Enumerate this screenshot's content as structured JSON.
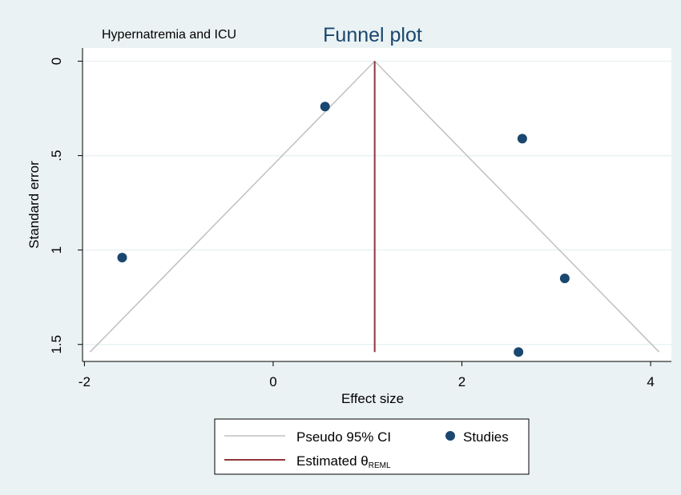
{
  "chart_data": {
    "type": "scatter",
    "title": "Funnel plot",
    "subtitle": "Hypernatremia and ICU",
    "x_label": "Effect size",
    "y_label": "Standard error",
    "xlim": [
      -2.02,
      4.22
    ],
    "ylim": [
      -0.07,
      1.59
    ],
    "y_reversed": true,
    "xticks": [
      -2,
      0,
      2,
      4
    ],
    "yticks": [
      0,
      {
        "value": 0.5,
        "label": ".5"
      },
      1,
      1.5
    ],
    "grid": true,
    "series": [
      {
        "name": "Studies",
        "color": "#1a476f",
        "x": [
          -1.6,
          0.55,
          2.64,
          3.09,
          2.6
        ],
        "values": [
          1.04,
          0.24,
          0.41,
          1.15,
          1.54
        ]
      }
    ],
    "lines": [
      {
        "name": "Pseudo 95% CI",
        "color": "#c0c0c0",
        "x": [
          -1.94,
          1.076,
          4.09
        ],
        "values": [
          1.54,
          0,
          1.54
        ]
      },
      {
        "name": "Estimated θ",
        "subscript": "REML",
        "color": "#90353b",
        "x": [
          1.076,
          1.076
        ],
        "values": [
          0,
          1.54
        ]
      }
    ]
  }
}
